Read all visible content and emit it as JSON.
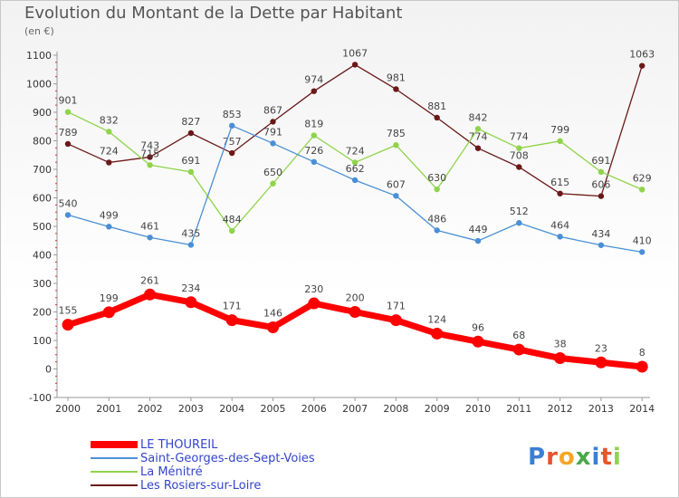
{
  "chart_data": {
    "type": "line",
    "title": "Evolution du Montant de la Dette par Habitant",
    "subtitle": "(en €)",
    "x": [
      "2000",
      "2001",
      "2002",
      "2003",
      "2004",
      "2005",
      "2006",
      "2007",
      "2008",
      "2009",
      "2010",
      "2011",
      "2012",
      "2013",
      "2014"
    ],
    "ylim": [
      -100,
      1100
    ],
    "yticks": [
      -100,
      0,
      100,
      200,
      300,
      400,
      500,
      600,
      700,
      800,
      900,
      1000,
      1100
    ],
    "grid": false,
    "legend": "bottom-left",
    "series": [
      {
        "name": "Les Rosiers-sur-Loire",
        "color": "#6b1818",
        "values": [
          789,
          724,
          743,
          827,
          757,
          867,
          974,
          1067,
          981,
          881,
          774,
          708,
          615,
          606,
          1063
        ]
      },
      {
        "name": "La Ménitré",
        "color": "#8fd44a",
        "values": [
          901,
          832,
          715,
          691,
          484,
          650,
          819,
          724,
          785,
          630,
          842,
          774,
          799,
          691,
          629
        ]
      },
      {
        "name": "Saint-Georges-des-Sept-Voies",
        "color": "#4a8fd4",
        "values": [
          540,
          499,
          461,
          435,
          853,
          791,
          726,
          662,
          607,
          486,
          449,
          512,
          464,
          434,
          410
        ]
      },
      {
        "name": "LE THOUREIL",
        "color": "#ff0000",
        "values": [
          155,
          199,
          261,
          234,
          171,
          146,
          230,
          200,
          171,
          124,
          96,
          68,
          38,
          23,
          8
        ]
      }
    ]
  },
  "legend_items": [
    {
      "label": "LE THOUREIL",
      "color": "#ff0000"
    },
    {
      "label": "Saint-Georges-des-Sept-Voies",
      "color": "#4a8fd4"
    },
    {
      "label": "La Ménitré",
      "color": "#8fd44a"
    },
    {
      "label": "Les Rosiers-sur-Loire",
      "color": "#6b1818"
    }
  ],
  "logo": {
    "letters": [
      "P",
      "r",
      "o",
      "x",
      "i",
      "t",
      "i"
    ],
    "colors": [
      "#3a7fd4",
      "#e8542c",
      "#f5a623",
      "#4aa84a",
      "#3a7fd4",
      "#e8542c",
      "#8fd44a"
    ]
  }
}
